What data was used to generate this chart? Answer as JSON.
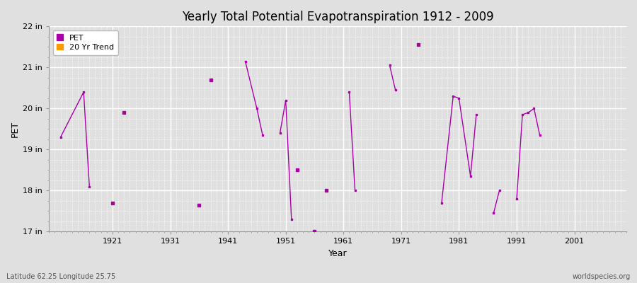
{
  "title": "Yearly Total Potential Evapotranspiration 1912 - 2009",
  "xlabel": "Year",
  "ylabel": "PET",
  "background_color": "#e0e0e0",
  "plot_bg_color": "#e0e0e0",
  "line_color": "#aa00aa",
  "trend_color": "#ff9900",
  "ylim": [
    17,
    22
  ],
  "xlim": [
    1910,
    2010
  ],
  "yticks": [
    17,
    18,
    19,
    20,
    21,
    22
  ],
  "ytick_labels": [
    "17 in",
    "18 in",
    "19 in",
    "20 in",
    "21 in",
    "22 in"
  ],
  "xticks": [
    1921,
    1931,
    1941,
    1951,
    1961,
    1971,
    1981,
    1991,
    2001
  ],
  "watermark_left": "Latitude 62.25 Longitude 25.75",
  "watermark_right": "worldspecies.org",
  "segments": [
    [
      [
        1912,
        19.3
      ],
      [
        1916,
        20.4
      ],
      [
        1917,
        18.1
      ]
    ],
    [
      [
        1936,
        17.65
      ]
    ],
    [
      [
        1938,
        20.7
      ]
    ],
    [
      [
        1944,
        21.15
      ],
      [
        1946,
        20.0
      ],
      [
        1947,
        19.35
      ]
    ],
    [
      [
        1950,
        19.4
      ],
      [
        1951,
        20.2
      ],
      [
        1952,
        17.3
      ]
    ],
    [
      [
        1953,
        18.5
      ]
    ],
    [
      [
        1956,
        17.0
      ]
    ],
    [
      [
        1958,
        18.0
      ]
    ],
    [
      [
        1962,
        20.4
      ],
      [
        1963,
        18.0
      ]
    ],
    [
      [
        1969,
        21.05
      ],
      [
        1970,
        20.45
      ]
    ],
    [
      [
        1974,
        21.55
      ]
    ],
    [
      [
        1978,
        17.7
      ],
      [
        1980,
        20.3
      ],
      [
        1981,
        20.25
      ],
      [
        1983,
        18.35
      ],
      [
        1984,
        19.85
      ]
    ],
    [
      [
        1987,
        17.45
      ],
      [
        1988,
        18.0
      ]
    ],
    [
      [
        1991,
        17.8
      ],
      [
        1992,
        19.85
      ],
      [
        1993,
        19.9
      ],
      [
        1994,
        20.0
      ],
      [
        1995,
        19.35
      ]
    ],
    [
      [
        1921,
        17.7
      ]
    ],
    [
      [
        1923,
        19.9
      ]
    ]
  ]
}
